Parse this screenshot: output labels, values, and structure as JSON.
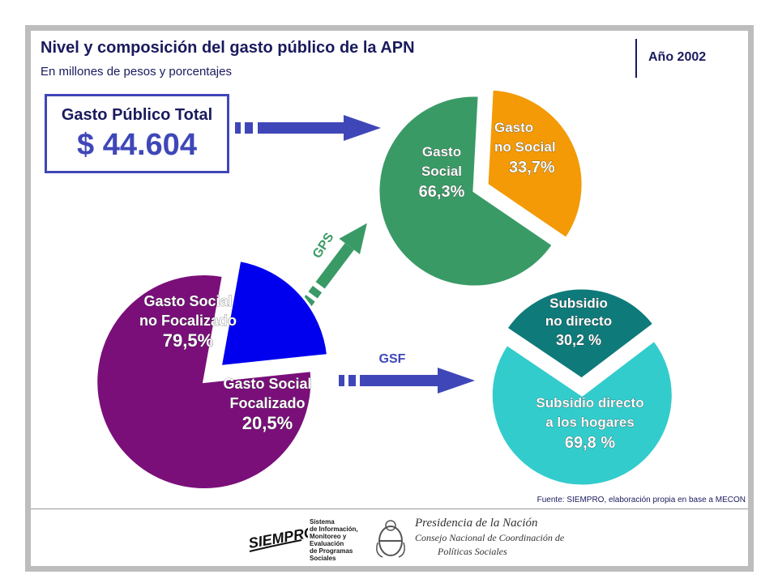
{
  "header": {
    "title": "Nivel y composición del gasto público de la APN",
    "subtitle": "En millones de pesos y porcentajes",
    "year": "Año 2002"
  },
  "total": {
    "label": "Gasto Público Total",
    "value": "$ 44.604"
  },
  "arrows": {
    "gps": "GPS",
    "gsf": "GSF"
  },
  "chart_data": [
    {
      "type": "pie",
      "slices": [
        {
          "lines": [
            "Gasto",
            "Social"
          ],
          "pct_label": "66,3%",
          "value": 66.3,
          "color": "#3a9a66"
        },
        {
          "lines": [
            "Gasto",
            "no Social"
          ],
          "pct_label": "33,7%",
          "value": 33.7,
          "color": "#f39a06"
        }
      ]
    },
    {
      "type": "pie",
      "slices": [
        {
          "lines": [
            "Gasto Social",
            "no Focalizado"
          ],
          "pct_label": "79,5%",
          "value": 79.5,
          "color": "#7a0f7a"
        },
        {
          "lines": [
            "Gasto Social",
            "Focalizado"
          ],
          "pct_label": "20,5%",
          "value": 20.5,
          "color": "#0000ee"
        }
      ]
    },
    {
      "type": "pie",
      "slices": [
        {
          "lines": [
            "Subsidio",
            "no directo"
          ],
          "pct_label": "30,2 %",
          "value": 30.2,
          "color": "#0f7a7a"
        },
        {
          "lines": [
            "Subsidio directo",
            "a los hogares"
          ],
          "pct_label": "69,8 %",
          "value": 69.8,
          "color": "#33cccc"
        }
      ]
    }
  ],
  "source": "Fuente: SIEMPRO, elaboración propia en base a MECON",
  "footer": {
    "siempro_logo": "SIEMPRO",
    "siempro_text": [
      "Sistema",
      "de Información,",
      "Monitoreo y",
      "Evaluación",
      "de Programas",
      "Sociales"
    ],
    "presidencia": [
      "Presidencia de la Nación",
      "Consejo Nacional de Coordinación de",
      "Políticas Sociales"
    ]
  },
  "colors": {
    "arrow_blue": "#3f47b8",
    "arrow_green": "#3a9a66",
    "text_navy": "#1a1a5e"
  }
}
